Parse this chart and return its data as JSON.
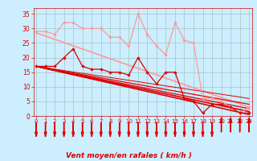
{
  "bg_color": "#cceeff",
  "grid_color": "#aacccc",
  "xlabel": "Vent moyen/en rafales ( km/h )",
  "ylabel_ticks": [
    0,
    5,
    10,
    15,
    20,
    25,
    30,
    35
  ],
  "xlim": [
    -0.3,
    23.3
  ],
  "ylim": [
    0,
    37
  ],
  "x_ticks": [
    0,
    1,
    2,
    3,
    4,
    5,
    6,
    7,
    8,
    9,
    10,
    11,
    12,
    13,
    14,
    15,
    16,
    17,
    18,
    19,
    20,
    21,
    22,
    23
  ],
  "line_light_scatter": {
    "x": [
      0,
      1,
      2,
      3,
      4,
      5,
      6,
      7,
      8,
      9,
      10,
      11,
      12,
      13,
      14,
      15,
      16,
      17,
      18,
      19,
      20,
      21,
      22,
      23
    ],
    "y": [
      29,
      29,
      28,
      32,
      32,
      30,
      30,
      30,
      27,
      27,
      24,
      35,
      28,
      24,
      21,
      32,
      26,
      25,
      6,
      6,
      5,
      3,
      1,
      3
    ],
    "color": "#ff9999",
    "lw": 0.9,
    "marker": "D",
    "ms": 2.2
  },
  "line_light_trend": {
    "x": [
      0,
      23
    ],
    "y": [
      28.5,
      3.0
    ],
    "color": "#ff9999",
    "lw": 1.2
  },
  "line_dark_scatter": {
    "x": [
      0,
      1,
      2,
      3,
      4,
      5,
      6,
      7,
      8,
      9,
      10,
      11,
      12,
      13,
      14,
      15,
      16,
      17,
      18,
      19,
      20,
      21,
      22,
      23
    ],
    "y": [
      17,
      17,
      17,
      20,
      23,
      17,
      16,
      16,
      15,
      15,
      14,
      20,
      15,
      11,
      15,
      15,
      6,
      5,
      1,
      4,
      4,
      3,
      1,
      1
    ],
    "color": "#dd0000",
    "lw": 0.9,
    "marker": "D",
    "ms": 2.2
  },
  "trend_lines": [
    {
      "x": [
        0,
        23
      ],
      "y": [
        17.0,
        0.5
      ],
      "color": "#dd0000",
      "lw": 1.2
    },
    {
      "x": [
        0,
        23
      ],
      "y": [
        17.0,
        1.5
      ],
      "color": "#dd0000",
      "lw": 1.2
    },
    {
      "x": [
        0,
        23
      ],
      "y": [
        17.0,
        2.5
      ],
      "color": "#dd0000",
      "lw": 0.9
    },
    {
      "x": [
        0,
        23
      ],
      "y": [
        17.0,
        4.0
      ],
      "color": "#dd0000",
      "lw": 0.9
    },
    {
      "x": [
        0,
        23
      ],
      "y": [
        17.0,
        6.0
      ],
      "color": "#dd0000",
      "lw": 0.7
    }
  ],
  "arrow_color": "#dd0000",
  "arrow_down_indices": [
    0,
    1,
    2,
    3,
    4,
    5,
    6,
    7,
    8,
    9,
    10,
    11,
    12,
    13,
    14,
    15,
    16,
    17,
    18,
    19
  ],
  "arrow_up_indices": [
    20,
    21,
    22,
    23
  ],
  "tick_color": "#dd0000",
  "label_color": "#dd0000",
  "xlabel_fontsize": 6.5
}
